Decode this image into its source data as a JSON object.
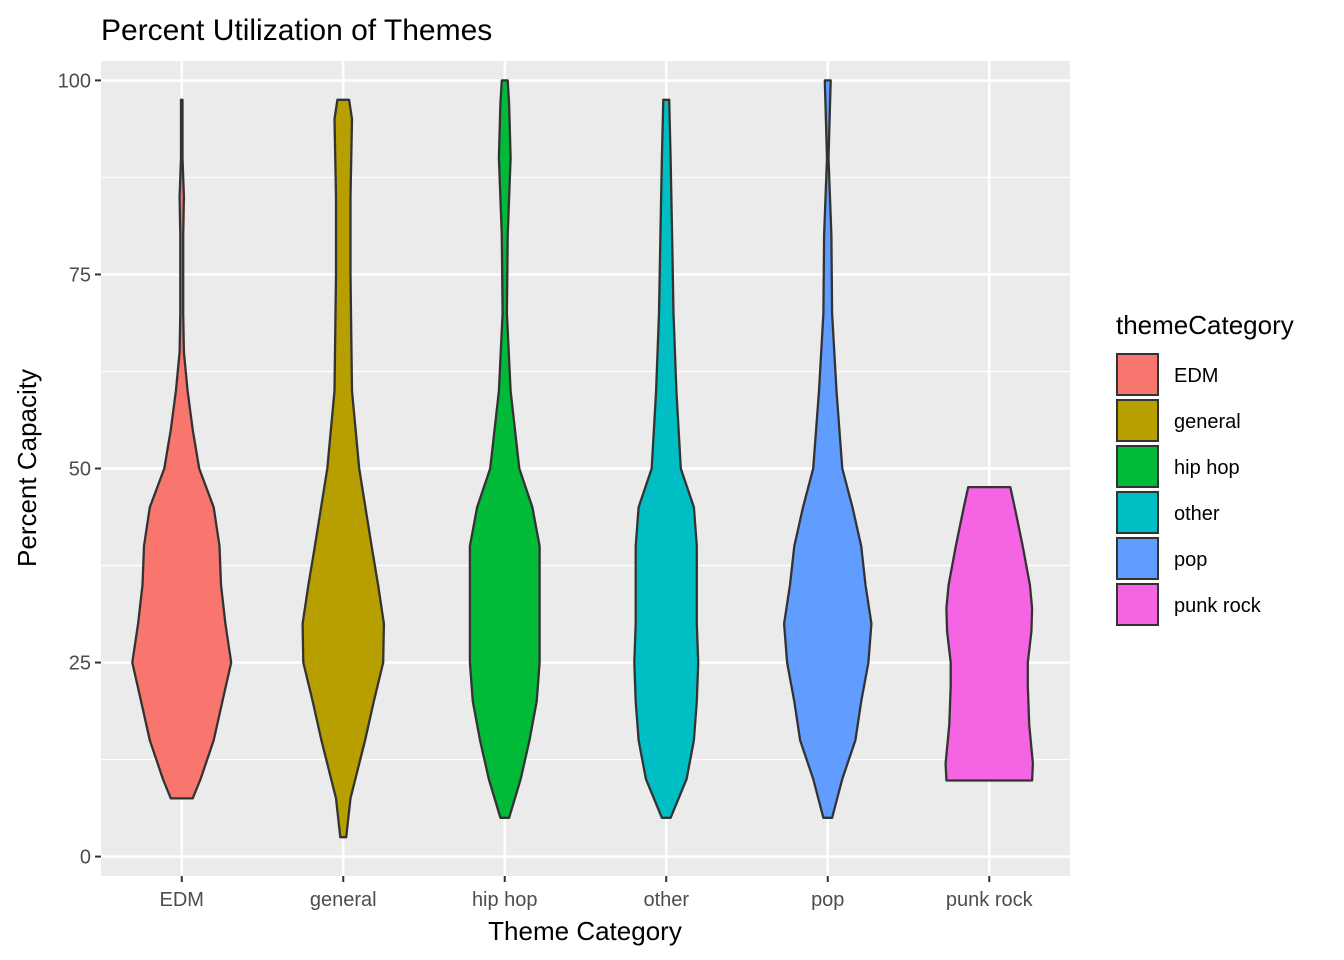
{
  "chart_data": {
    "type": "violin",
    "title": "Percent Utilization of Themes",
    "xlabel": "Theme Category",
    "ylabel": "Percent Capacity",
    "ylim": [
      -2.5,
      102.5
    ],
    "yticks": [
      0,
      25,
      50,
      75,
      100
    ],
    "grid": true,
    "legend": {
      "title": "themeCategory",
      "placement": "right"
    },
    "categories": [
      "EDM",
      "general",
      "hip hop",
      "other",
      "pop",
      "punk rock"
    ],
    "colors": [
      "#F8766D",
      "#B79F00",
      "#00BA38",
      "#00BFC4",
      "#619CFF",
      "#F564E3"
    ],
    "series": [
      {
        "name": "EDM",
        "min": 7.5,
        "max": 97.5,
        "density": [
          [
            7.5,
            0.15
          ],
          [
            10,
            0.26
          ],
          [
            15,
            0.44
          ],
          [
            20,
            0.56
          ],
          [
            25,
            0.68
          ],
          [
            30,
            0.6
          ],
          [
            35,
            0.54
          ],
          [
            40,
            0.52
          ],
          [
            45,
            0.44
          ],
          [
            50,
            0.24
          ],
          [
            55,
            0.15
          ],
          [
            60,
            0.08
          ],
          [
            65,
            0.03
          ],
          [
            70,
            0.02
          ],
          [
            80,
            0.02
          ],
          [
            85,
            0.03
          ],
          [
            90,
            0.01
          ],
          [
            97.5,
            0.01
          ]
        ]
      },
      {
        "name": "general",
        "min": 2.5,
        "max": 97.5,
        "density": [
          [
            2.5,
            0.04
          ],
          [
            7.5,
            0.1
          ],
          [
            15,
            0.3
          ],
          [
            20,
            0.42
          ],
          [
            25,
            0.55
          ],
          [
            30,
            0.56
          ],
          [
            35,
            0.48
          ],
          [
            40,
            0.39
          ],
          [
            50,
            0.22
          ],
          [
            60,
            0.12
          ],
          [
            75,
            0.1
          ],
          [
            85,
            0.1
          ],
          [
            95,
            0.12
          ],
          [
            97.5,
            0.08
          ]
        ]
      },
      {
        "name": "hip hop",
        "min": 5,
        "max": 100,
        "density": [
          [
            5,
            0.06
          ],
          [
            10,
            0.22
          ],
          [
            15,
            0.34
          ],
          [
            20,
            0.44
          ],
          [
            25,
            0.48
          ],
          [
            30,
            0.48
          ],
          [
            35,
            0.48
          ],
          [
            40,
            0.48
          ],
          [
            45,
            0.38
          ],
          [
            50,
            0.2
          ],
          [
            60,
            0.08
          ],
          [
            70,
            0.03
          ],
          [
            80,
            0.04
          ],
          [
            90,
            0.08
          ],
          [
            97,
            0.06
          ],
          [
            100,
            0.04
          ]
        ]
      },
      {
        "name": "other",
        "min": 5,
        "max": 97.5,
        "density": [
          [
            5,
            0.06
          ],
          [
            10,
            0.28
          ],
          [
            15,
            0.38
          ],
          [
            20,
            0.42
          ],
          [
            25,
            0.44
          ],
          [
            30,
            0.42
          ],
          [
            35,
            0.42
          ],
          [
            40,
            0.42
          ],
          [
            45,
            0.38
          ],
          [
            50,
            0.2
          ],
          [
            60,
            0.14
          ],
          [
            70,
            0.1
          ],
          [
            80,
            0.08
          ],
          [
            90,
            0.06
          ],
          [
            97.5,
            0.04
          ]
        ]
      },
      {
        "name": "pop",
        "min": 5,
        "max": 100,
        "density": [
          [
            5,
            0.06
          ],
          [
            10,
            0.2
          ],
          [
            15,
            0.38
          ],
          [
            20,
            0.46
          ],
          [
            25,
            0.56
          ],
          [
            30,
            0.6
          ],
          [
            35,
            0.52
          ],
          [
            40,
            0.46
          ],
          [
            45,
            0.34
          ],
          [
            50,
            0.2
          ],
          [
            60,
            0.12
          ],
          [
            70,
            0.06
          ],
          [
            80,
            0.05
          ],
          [
            90,
            0.01
          ],
          [
            100,
            0.04
          ]
        ]
      },
      {
        "name": "punk rock",
        "min": 9.8,
        "max": 47.6,
        "density": [
          [
            9.8,
            0.59
          ],
          [
            12,
            0.6
          ],
          [
            17,
            0.55
          ],
          [
            22,
            0.53
          ],
          [
            25,
            0.53
          ],
          [
            29,
            0.58
          ],
          [
            32,
            0.59
          ],
          [
            35,
            0.56
          ],
          [
            40,
            0.46
          ],
          [
            45,
            0.35
          ],
          [
            47.6,
            0.29
          ]
        ]
      }
    ]
  }
}
